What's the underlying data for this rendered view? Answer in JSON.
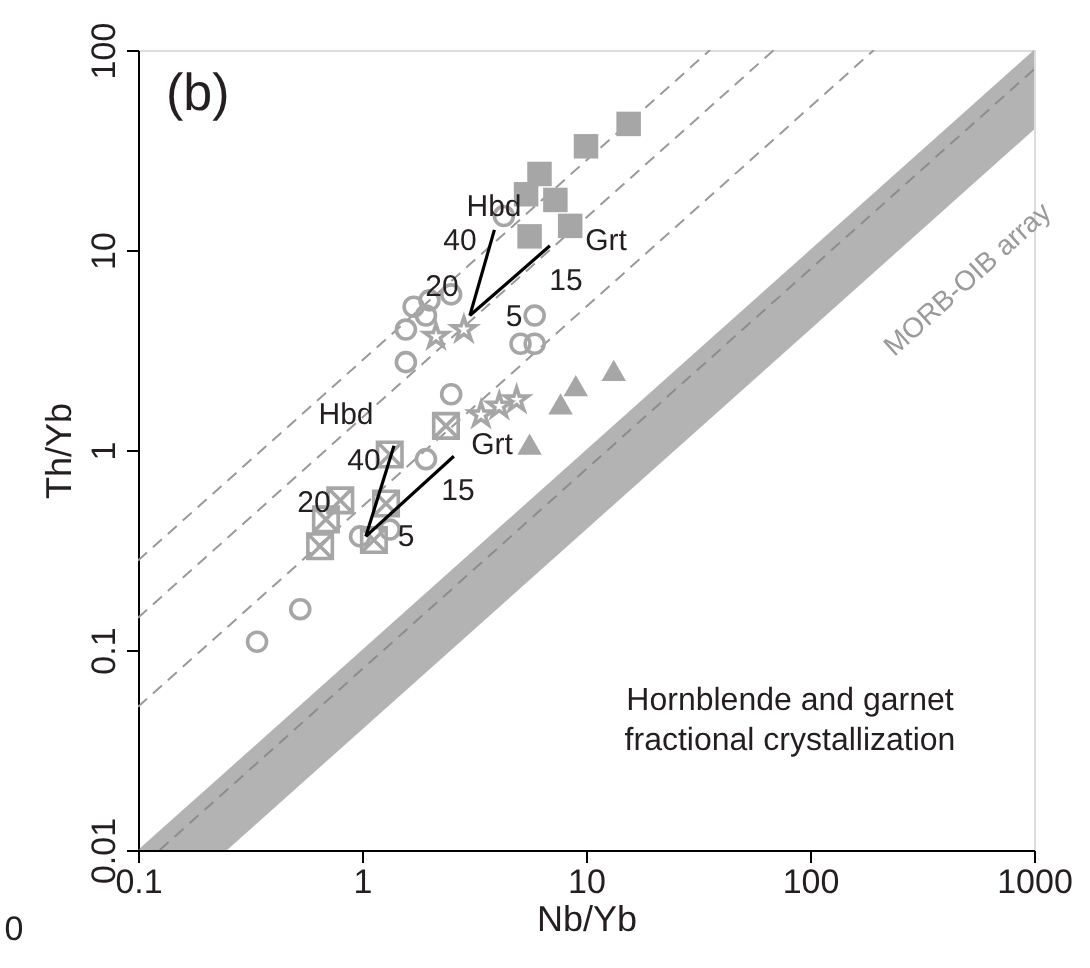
{
  "chart_data": {
    "type": "scatter",
    "xlabel": "Nb/Yb",
    "ylabel": "Th/Yb",
    "log": "xy",
    "xlim": [
      0.1,
      1000
    ],
    "ylim": [
      0.01,
      100
    ],
    "xticks": [
      0.1,
      1,
      10,
      100,
      {
        "value": 1000,
        "label": "1000"
      }
    ],
    "yticks": [
      0.01,
      0.1,
      1,
      10,
      100
    ],
    "grid": false,
    "annotations": [
      "(b)",
      "Hornblende and garnet\nfractional crystallization",
      "MORB-OIB array",
      "0",
      "Hbd",
      "40",
      "20",
      "5",
      "15",
      "Grt",
      "Hbd",
      "40",
      "20",
      "5",
      "15",
      "Grt"
    ],
    "series": [
      {
        "type": "line",
        "color": "#8c8c8c",
        "x": [
          0.1,
          0.125,
          0.25,
          1000
        ],
        "values": [
          null,
          0.01,
          0.02,
          80
        ],
        "lower": [
          0.01,
          0.01,
          0.01,
          40
        ],
        "upper": [
          0.01,
          0.0125,
          0.025,
          100
        ],
        "line_style": "dashed",
        "marker": "none"
      },
      {
        "type": "line",
        "color": "#999999",
        "x": [
          0.1,
          35.8
        ],
        "values": [
          0.28,
          100
        ],
        "line_style": "dashed",
        "marker": "none"
      },
      {
        "type": "line",
        "color": "#999999",
        "x": [
          0.1,
          69
        ],
        "values": [
          0.145,
          100
        ],
        "line_style": "dashed",
        "marker": "none"
      },
      {
        "type": "line",
        "color": "#999999",
        "x": [
          0.1,
          193
        ],
        "values": [
          0.052,
          100
        ],
        "line_style": "dashed",
        "marker": "none"
      },
      {
        "color": "#a6a6a6",
        "marker": "square",
        "x": [
          15.5,
          10,
          6.2,
          5.4,
          7.3,
          5.6,
          8.5
        ],
        "values": [
          42.7,
          33,
          24,
          19,
          17.8,
          11.7,
          13.2
        ]
      },
      {
        "color": "#a6a6a6",
        "marker": "circle",
        "x": [
          4.3,
          5.9,
          5.1,
          5.9,
          1.7,
          2.0,
          2.5,
          1.57,
          1.93,
          1.57,
          2.5,
          1.93
        ],
        "values": [
          14.8,
          4.7,
          3.4,
          3.4,
          5.2,
          5.6,
          6.0,
          4.0,
          4.7,
          2.75,
          1.9,
          0.9
        ]
      },
      {
        "color": "#a6a6a6",
        "marker": "star",
        "x": [
          2.14,
          2.85,
          4.1,
          3.4,
          4.9
        ],
        "values": [
          3.7,
          4.0,
          1.66,
          1.5,
          1.78
        ]
      },
      {
        "color": "#a6a6a6",
        "marker": "triangle",
        "x": [
          13.3,
          9.0,
          7.7,
          5.6
        ],
        "values": [
          2.5,
          2.1,
          1.7,
          1.07
        ]
      },
      {
        "color": "#a6a6a6",
        "marker": "cross",
        "x": [
          2.37,
          1.33,
          0.69,
          0.8,
          0.65,
          1.28,
          1.13
        ],
        "values": [
          1.32,
          0.95,
          0.45,
          0.56,
          0.33,
          0.54,
          0.355
        ]
      },
      {
        "color": "#a6a6a6",
        "marker": "circle",
        "x": [
          0.34,
          0.53,
          0.98,
          1.33
        ],
        "values": [
          0.11,
          0.16,
          0.37,
          0.4
        ]
      },
      {
        "type": "line",
        "color": "#000000",
        "x": [
          3.03,
          3.9
        ],
        "values": [
          4.7,
          12.6
        ],
        "marker": "none",
        "line_style": "solid"
      },
      {
        "type": "line",
        "color": "#000000",
        "x": [
          3.03,
          6.9
        ],
        "values": [
          4.7,
          10.5
        ],
        "marker": "none",
        "line_style": "solid"
      },
      {
        "type": "line",
        "color": "#000000",
        "x": [
          1.04,
          1.39
        ],
        "values": [
          0.37,
          1.05
        ],
        "marker": "none",
        "line_style": "solid"
      },
      {
        "type": "line",
        "color": "#000000",
        "x": [
          1.04,
          2.57
        ],
        "values": [
          0.37,
          0.93
        ],
        "marker": "none",
        "line_style": "solid"
      }
    ]
  }
}
